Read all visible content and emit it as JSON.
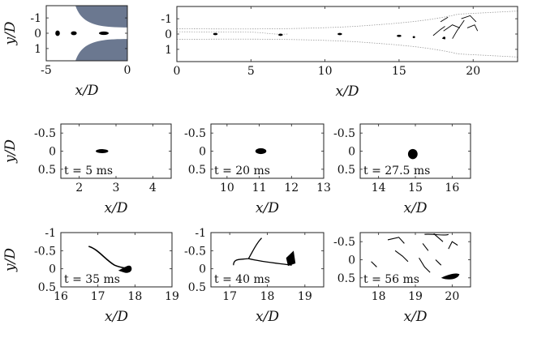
{
  "figure": {
    "colors": {
      "wall": "#6b7890",
      "drop": "#000000",
      "frame": "#222222",
      "interface": "#9a9a9a"
    },
    "panels": [
      {
        "id": "a",
        "xlabel": "x/D",
        "ylabel": "y/D",
        "xlim": [
          -5,
          0
        ],
        "ylim": [
          -1.8,
          1.8
        ],
        "xticks": [
          "-5",
          "0"
        ],
        "xtick_values": [
          -5,
          0
        ],
        "yticks": [
          "-1",
          "0",
          "1"
        ],
        "ytick_values": [
          -1,
          0,
          1
        ],
        "y_reversed": true,
        "time_label": "",
        "kind": "nozzle"
      },
      {
        "id": "b",
        "xlabel": "x/D",
        "ylabel": "",
        "xlim": [
          0,
          23
        ],
        "ylim": [
          -1.8,
          1.8
        ],
        "xticks": [
          "0",
          "5",
          "10",
          "15",
          "20"
        ],
        "xtick_values": [
          0,
          5,
          10,
          15,
          20
        ],
        "yticks": [
          "-1",
          "0",
          "1"
        ],
        "ytick_values": [
          -1,
          0,
          1
        ],
        "y_reversed": true,
        "time_label": "",
        "kind": "channel"
      },
      {
        "id": "c",
        "xlabel": "x/D",
        "ylabel": "y/D",
        "xlim": [
          1.5,
          4.5
        ],
        "ylim": [
          -0.75,
          0.75
        ],
        "xticks": [
          "2",
          "3",
          "4"
        ],
        "xtick_values": [
          2,
          3,
          4
        ],
        "yticks": [
          "-0.5",
          "0",
          "0.5"
        ],
        "ytick_values": [
          -0.5,
          0,
          0.5
        ],
        "y_reversed": true,
        "time_label": "t = 5 ms",
        "kind": "drop"
      },
      {
        "id": "d",
        "xlabel": "x/D",
        "ylabel": "",
        "xlim": [
          9.5,
          13
        ],
        "ylim": [
          -0.75,
          0.75
        ],
        "xticks": [
          "10",
          "11",
          "12",
          "13"
        ],
        "xtick_values": [
          10,
          11,
          12,
          13
        ],
        "yticks": [
          "-0.5",
          "0",
          "0.5"
        ],
        "ytick_values": [
          -0.5,
          0,
          0.5
        ],
        "y_reversed": true,
        "time_label": "t = 20 ms",
        "kind": "drop"
      },
      {
        "id": "e",
        "xlabel": "x/D",
        "ylabel": "",
        "xlim": [
          13.5,
          16.5
        ],
        "ylim": [
          -0.75,
          0.75
        ],
        "xticks": [
          "14",
          "15",
          "16"
        ],
        "xtick_values": [
          14,
          15,
          16
        ],
        "yticks": [
          "-0.5",
          "0",
          "0.5"
        ],
        "ytick_values": [
          -0.5,
          0,
          0.5
        ],
        "y_reversed": true,
        "time_label": "t = 27.5 ms",
        "kind": "drop"
      },
      {
        "id": "f",
        "xlabel": "x/D",
        "ylabel": "y/D",
        "xlim": [
          16,
          19
        ],
        "ylim": [
          -1,
          0.5
        ],
        "xticks": [
          "16",
          "17",
          "18",
          "19"
        ],
        "xtick_values": [
          16,
          17,
          18,
          19
        ],
        "yticks": [
          "-1",
          "-0.5",
          "0",
          "0.5"
        ],
        "ytick_values": [
          -1,
          -0.5,
          0,
          0.5
        ],
        "y_reversed": true,
        "time_label": "t = 35 ms",
        "kind": "filament"
      },
      {
        "id": "g",
        "xlabel": "x/D",
        "ylabel": "",
        "xlim": [
          16.5,
          19.5
        ],
        "ylim": [
          -1,
          0.5
        ],
        "xticks": [
          "17",
          "18",
          "19"
        ],
        "xtick_values": [
          17,
          18,
          19
        ],
        "yticks": [
          "-1",
          "-0.5",
          "0",
          "0.5"
        ],
        "ytick_values": [
          -1,
          -0.5,
          0,
          0.5
        ],
        "y_reversed": true,
        "time_label": "t = 40 ms",
        "kind": "filament"
      },
      {
        "id": "h",
        "xlabel": "x/D",
        "ylabel": "",
        "xlim": [
          17.5,
          20.5
        ],
        "ylim": [
          -0.75,
          0.75
        ],
        "xticks": [
          "18",
          "19",
          "20"
        ],
        "xtick_values": [
          18,
          19,
          20
        ],
        "yticks": [
          "-0.5",
          "0",
          "0.5"
        ],
        "ytick_values": [
          -0.5,
          0,
          0.5
        ],
        "y_reversed": true,
        "time_label": "t = 56 ms",
        "kind": "breakup"
      }
    ]
  }
}
